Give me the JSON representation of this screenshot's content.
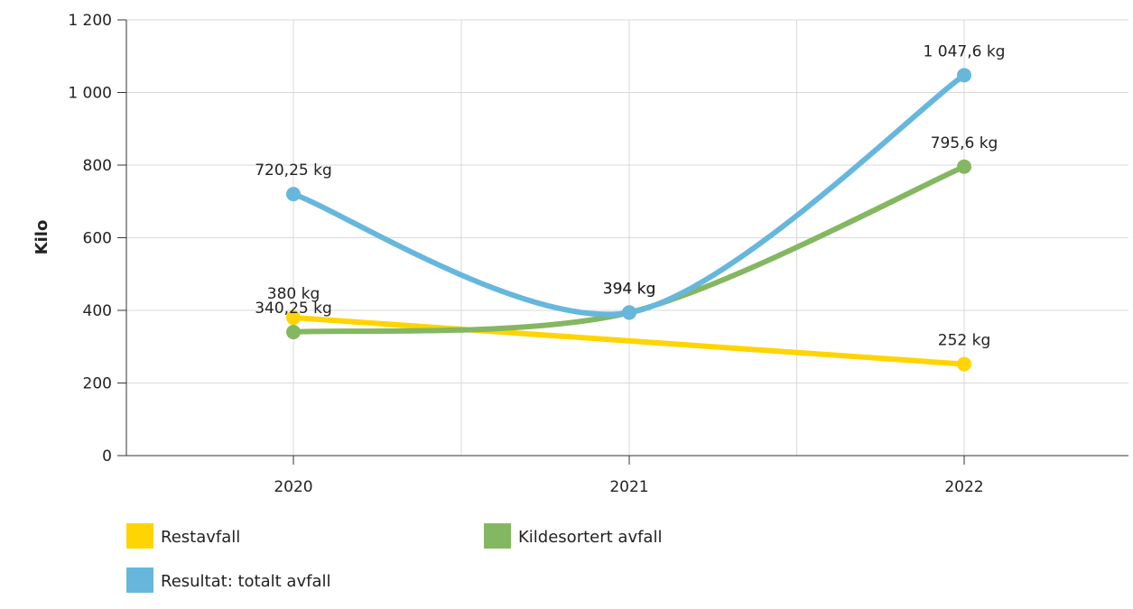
{
  "chart_data": {
    "type": "line",
    "xlabel": "",
    "ylabel": "Kilo",
    "categories": [
      "2020",
      "2021",
      "2022"
    ],
    "ylim": [
      0,
      1200
    ],
    "yticks": [
      0,
      200,
      400,
      600,
      800,
      1000,
      1200
    ],
    "ytick_labels": [
      "0",
      "200",
      "400",
      "600",
      "800",
      "1 000",
      "1 200"
    ],
    "grid": true,
    "smooth": true,
    "legend_position": "bottom",
    "series": [
      {
        "name": "Restavfall",
        "color": "#FFD400",
        "values": [
          380,
          null,
          252
        ],
        "labels": [
          "380 kg",
          "",
          "252 kg"
        ]
      },
      {
        "name": "Kildesortert avfall",
        "color": "#84B761",
        "values": [
          340.25,
          394,
          795.6
        ],
        "labels": [
          "340,25 kg",
          "394 kg",
          "795,6 kg"
        ]
      },
      {
        "name": "Resultat: totalt avfall",
        "color": "#67B7DC",
        "values": [
          720.25,
          394,
          1047.6
        ],
        "labels": [
          "720,25 kg",
          "394 kg",
          "1 047,6 kg"
        ]
      }
    ]
  }
}
